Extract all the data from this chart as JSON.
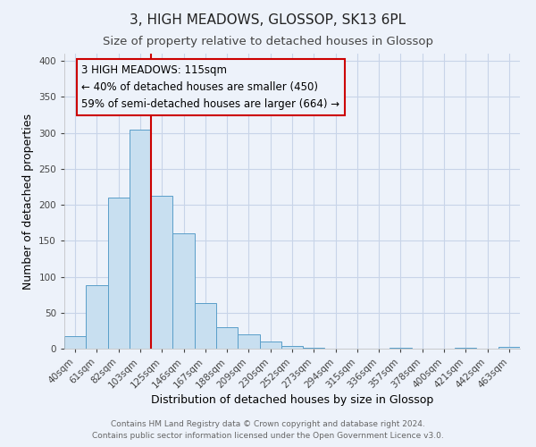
{
  "title": "3, HIGH MEADOWS, GLOSSOP, SK13 6PL",
  "subtitle": "Size of property relative to detached houses in Glossop",
  "xlabel": "Distribution of detached houses by size in Glossop",
  "ylabel": "Number of detached properties",
  "bar_labels": [
    "40sqm",
    "61sqm",
    "82sqm",
    "103sqm",
    "125sqm",
    "146sqm",
    "167sqm",
    "188sqm",
    "209sqm",
    "230sqm",
    "252sqm",
    "273sqm",
    "294sqm",
    "315sqm",
    "336sqm",
    "357sqm",
    "378sqm",
    "400sqm",
    "421sqm",
    "442sqm",
    "463sqm"
  ],
  "bar_heights": [
    17,
    88,
    210,
    305,
    212,
    160,
    63,
    30,
    20,
    10,
    4,
    1,
    0,
    0,
    0,
    1,
    0,
    0,
    1,
    0,
    2
  ],
  "bar_color": "#c8dff0",
  "bar_edge_color": "#5a9ec9",
  "vline_x": 3.5,
  "vline_color": "#cc0000",
  "annotation_title": "3 HIGH MEADOWS: 115sqm",
  "annotation_line1": "← 40% of detached houses are smaller (450)",
  "annotation_line2": "59% of semi-detached houses are larger (664) →",
  "annotation_box_edge": "#cc0000",
  "ylim": [
    0,
    410
  ],
  "yticks": [
    0,
    50,
    100,
    150,
    200,
    250,
    300,
    350,
    400
  ],
  "footer_line1": "Contains HM Land Registry data © Crown copyright and database right 2024.",
  "footer_line2": "Contains public sector information licensed under the Open Government Licence v3.0.",
  "bg_color": "#edf2fa",
  "plot_bg_color": "#edf2fa",
  "grid_color": "#c8d4e8",
  "title_fontsize": 11,
  "subtitle_fontsize": 9.5,
  "axis_label_fontsize": 9,
  "tick_fontsize": 7.5,
  "footer_fontsize": 6.5,
  "annotation_fontsize": 8.5
}
